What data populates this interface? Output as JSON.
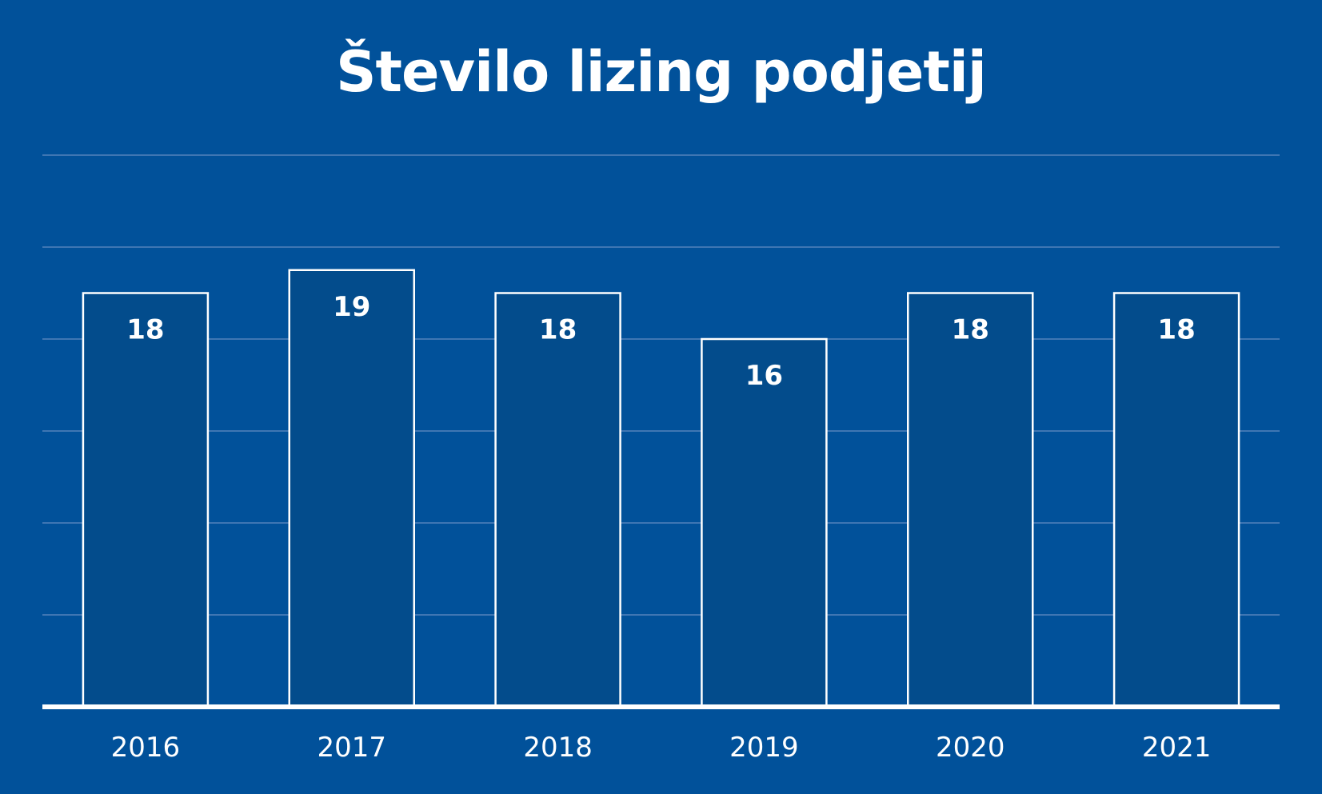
{
  "colors": {
    "background": "#01519a",
    "bar_fill": "#034c8c",
    "bar_stroke": "#ffffff",
    "gridline": "#3f76b3",
    "axis": "#ffffff",
    "text": "#ffffff"
  },
  "chart_data": {
    "type": "bar",
    "title": "Število lizing podjetij",
    "categories": [
      "2016",
      "2017",
      "2018",
      "2019",
      "2020",
      "2021"
    ],
    "values": [
      18,
      19,
      18,
      16,
      18,
      18
    ],
    "data_labels": [
      "18",
      "19",
      "18",
      "16",
      "18",
      "18"
    ],
    "ylim": [
      0,
      24
    ],
    "y_tick_step": 4,
    "grid": true,
    "show_y_tick_labels": false,
    "legend": "none"
  }
}
